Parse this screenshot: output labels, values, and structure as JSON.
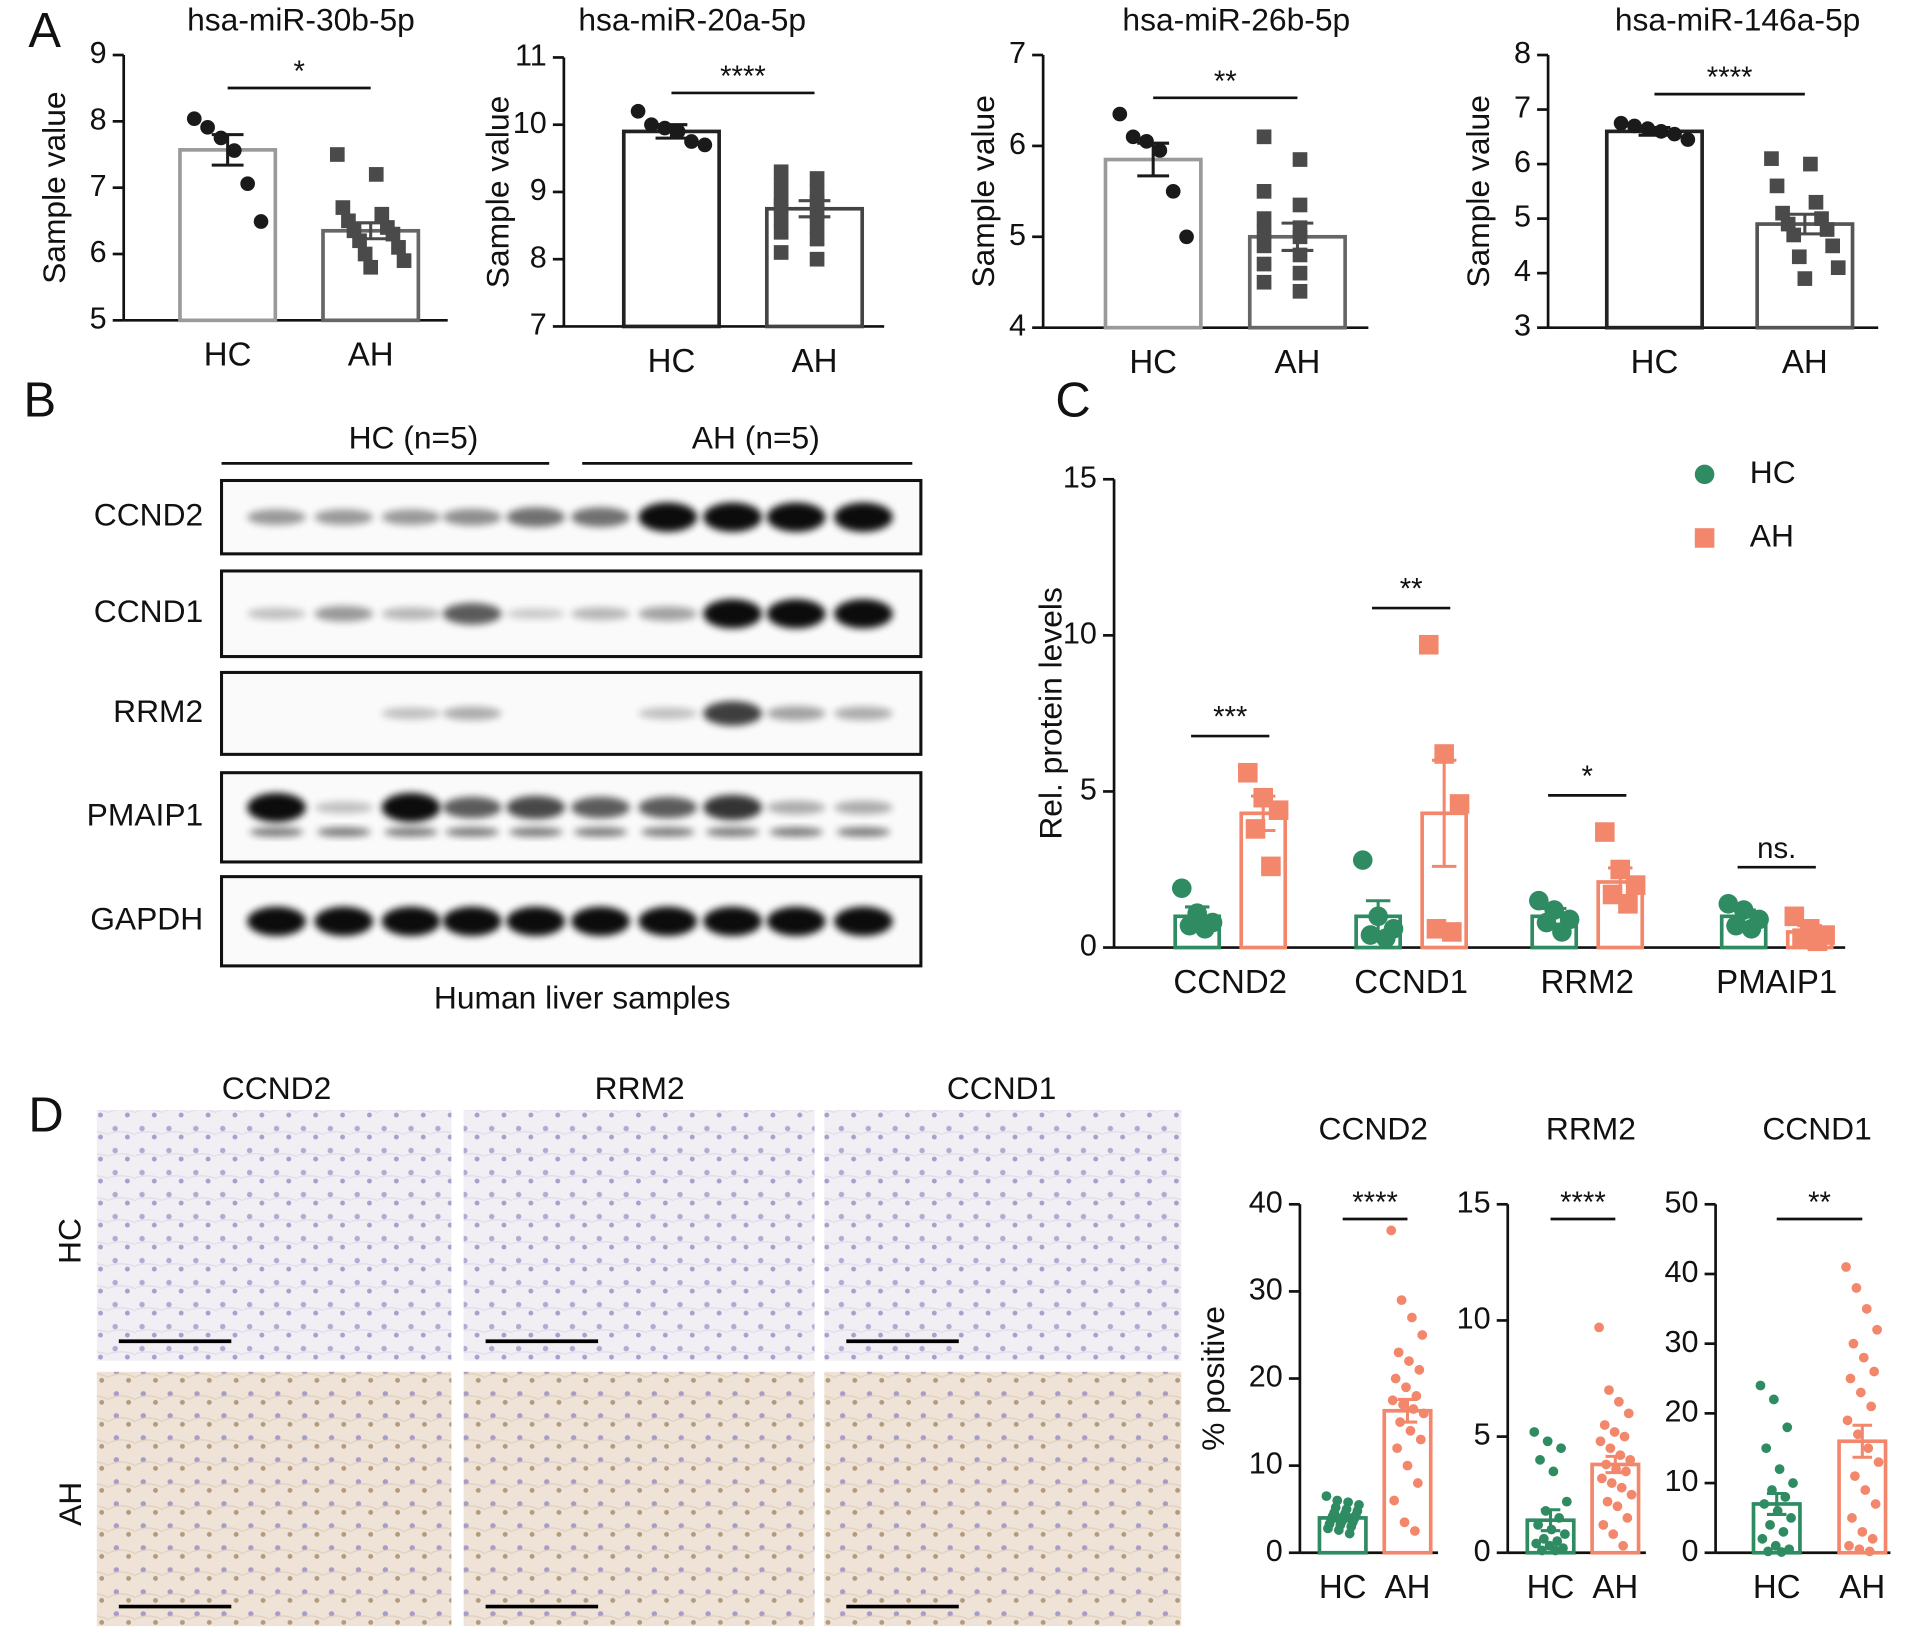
{
  "panels": [
    "A",
    "B",
    "C",
    "D"
  ],
  "blot": {
    "groups": [
      "HC (n=5)",
      "AH (n=5)"
    ],
    "proteins": [
      "CCND2",
      "CCND1",
      "RRM2",
      "PMAIP1",
      "GAPDH"
    ],
    "caption": "Human liver samples"
  },
  "histology": {
    "columns": [
      "CCND2",
      "RRM2",
      "CCND1"
    ],
    "rows": [
      "HC",
      "AH"
    ]
  },
  "chart_data": [
    {
      "type": "bar",
      "title": "hsa-miR-30b-5p",
      "ylabel": "Sample value",
      "categories": [
        "HC",
        "AH"
      ],
      "values": [
        7.57,
        6.35
      ],
      "errors": [
        0.23,
        0.12
      ],
      "points": [
        [
          8.04,
          7.91,
          7.75,
          7.56,
          7.06,
          6.49
        ],
        [
          7.5,
          7.2,
          6.7,
          6.6,
          6.5,
          6.4,
          6.35,
          6.3,
          6.2,
          6.1,
          6.0,
          5.9,
          5.8
        ]
      ],
      "colors": [
        "#9a9a9a",
        "#666666"
      ],
      "point_colors": [
        "#1a1a1a",
        "#4a4a4a"
      ],
      "markers": [
        "circle",
        "square"
      ],
      "significance": "*",
      "ylim": [
        5,
        9
      ],
      "yticks": [
        5,
        6,
        7,
        8,
        9
      ]
    },
    {
      "type": "bar",
      "title": "hsa-miR-20a-5p",
      "ylabel": "Sample value",
      "categories": [
        "HC",
        "AH"
      ],
      "values": [
        9.9,
        8.75
      ],
      "errors": [
        0.1,
        0.12
      ],
      "points": [
        [
          10.2,
          10.0,
          9.95,
          9.9,
          9.75,
          9.7
        ],
        [
          9.3,
          9.2,
          9.1,
          9.0,
          8.9,
          8.85,
          8.8,
          8.7,
          8.6,
          8.5,
          8.4,
          8.3,
          8.1,
          8.0
        ]
      ],
      "colors": [
        "#222222",
        "#444444"
      ],
      "point_colors": [
        "#1a1a1a",
        "#4a4a4a"
      ],
      "markers": [
        "circle",
        "square"
      ],
      "significance": "****",
      "ylim": [
        7,
        11
      ],
      "yticks": [
        7,
        8,
        9,
        10,
        11
      ]
    },
    {
      "type": "bar",
      "title": "hsa-miR-26b-5p",
      "ylabel": "Sample value",
      "categories": [
        "HC",
        "AH"
      ],
      "values": [
        5.85,
        5.0
      ],
      "errors": [
        0.18,
        0.15
      ],
      "points": [
        [
          6.35,
          6.1,
          6.05,
          5.95,
          5.5,
          5.0
        ],
        [
          6.1,
          5.85,
          5.5,
          5.35,
          5.2,
          5.1,
          5.05,
          5.0,
          4.9,
          4.8,
          4.7,
          4.6,
          4.5,
          4.4
        ]
      ],
      "colors": [
        "#9a9a9a",
        "#666666"
      ],
      "point_colors": [
        "#1a1a1a",
        "#4a4a4a"
      ],
      "markers": [
        "circle",
        "square"
      ],
      "significance": "**",
      "ylim": [
        4,
        7
      ],
      "yticks": [
        4,
        5,
        6,
        7
      ]
    },
    {
      "type": "bar",
      "title": "hsa-miR-146a-5p",
      "ylabel": "Sample value",
      "categories": [
        "HC",
        "AH"
      ],
      "values": [
        6.6,
        4.9
      ],
      "errors": [
        0.07,
        0.18
      ],
      "points": [
        [
          6.75,
          6.7,
          6.65,
          6.6,
          6.55,
          6.45
        ],
        [
          6.1,
          6.0,
          5.6,
          5.3,
          5.1,
          5.0,
          4.9,
          4.8,
          4.7,
          4.5,
          4.3,
          4.1,
          3.9
        ]
      ],
      "colors": [
        "#222222",
        "#555555"
      ],
      "point_colors": [
        "#1a1a1a",
        "#4a4a4a"
      ],
      "markers": [
        "circle",
        "square"
      ],
      "significance": "****",
      "ylim": [
        3,
        8
      ],
      "yticks": [
        3,
        4,
        5,
        6,
        7,
        8
      ]
    },
    {
      "type": "grouped_bar",
      "ylabel": "Rel. protein levels",
      "categories": [
        "CCND2",
        "CCND1",
        "RRM2",
        "PMAIP1"
      ],
      "series": [
        {
          "name": "HC",
          "color": "#2e8b62",
          "marker": "circle",
          "values": [
            1.0,
            1.0,
            1.0,
            1.0
          ],
          "errors": [
            0.3,
            0.5,
            0.25,
            0.2
          ],
          "points": [
            [
              1.9,
              1.1,
              0.8,
              0.7,
              0.6
            ],
            [
              2.8,
              1.0,
              0.6,
              0.4,
              0.3
            ],
            [
              1.5,
              1.2,
              0.9,
              0.8,
              0.5
            ],
            [
              1.4,
              1.2,
              0.9,
              0.7,
              0.6
            ]
          ]
        },
        {
          "name": "AH",
          "color": "#f2876b",
          "marker": "square",
          "values": [
            4.3,
            4.3,
            2.1,
            0.5
          ],
          "errors": [
            0.55,
            1.7,
            0.45,
            0.2
          ],
          "points": [
            [
              5.6,
              4.8,
              4.4,
              3.8,
              2.6
            ],
            [
              9.7,
              6.2,
              4.6,
              0.6,
              0.5
            ],
            [
              3.7,
              2.5,
              2.0,
              1.7,
              1.4
            ],
            [
              1.0,
              0.6,
              0.4,
              0.3,
              0.2
            ]
          ]
        }
      ],
      "significance": [
        "***",
        "**",
        "*",
        "ns."
      ],
      "ylim": [
        0,
        15
      ],
      "yticks": [
        0,
        5,
        10,
        15
      ],
      "legend": "top-right"
    },
    {
      "type": "bar",
      "title": "CCND2",
      "ylabel": "% positive",
      "categories": [
        "HC",
        "AH"
      ],
      "values": [
        4.0,
        16.3
      ],
      "errors": [
        0.35,
        1.3
      ],
      "points": [
        [
          6.5,
          6.0,
          5.8,
          5.5,
          5.2,
          5.0,
          4.8,
          4.6,
          4.5,
          4.3,
          4.2,
          4.0,
          3.9,
          3.8,
          3.6,
          3.5,
          3.3,
          3.2,
          3.0,
          2.8,
          2.6,
          2.2
        ],
        [
          37,
          29,
          27,
          25,
          23,
          22,
          21,
          20,
          19,
          18,
          17.5,
          17,
          16.5,
          16,
          15,
          14,
          13,
          12,
          10,
          8,
          6,
          3.5,
          2.5
        ]
      ],
      "colors": [
        "#2e8b62",
        "#f2876b"
      ],
      "markers": [
        "circle",
        "circle"
      ],
      "significance": "****",
      "ylim": [
        0,
        40
      ],
      "yticks": [
        0,
        10,
        20,
        30,
        40
      ]
    },
    {
      "type": "bar",
      "title": "RRM2",
      "categories": [
        "HC",
        "AH"
      ],
      "values": [
        1.4,
        3.8
      ],
      "errors": [
        0.45,
        0.35
      ],
      "points": [
        [
          5.2,
          4.8,
          4.5,
          4.0,
          3.5,
          2.2,
          1.8,
          1.5,
          1.2,
          1.0,
          0.8,
          0.6,
          0.5,
          0.4,
          0.3,
          0.2,
          0.1,
          0.1
        ],
        [
          9.7,
          7.0,
          6.5,
          6.0,
          5.5,
          5.2,
          5.0,
          4.8,
          4.5,
          4.2,
          4.0,
          3.8,
          3.6,
          3.5,
          3.2,
          3.0,
          2.8,
          2.5,
          2.2,
          2.0,
          1.5,
          1.2,
          0.8,
          0.3
        ]
      ],
      "colors": [
        "#2e8b62",
        "#f2876b"
      ],
      "markers": [
        "circle",
        "circle"
      ],
      "significance": "****",
      "ylim": [
        0,
        15
      ],
      "yticks": [
        0,
        5,
        10,
        15
      ]
    },
    {
      "type": "bar",
      "title": "CCND1",
      "categories": [
        "HC",
        "AH"
      ],
      "values": [
        7.0,
        16.0
      ],
      "errors": [
        1.5,
        2.3
      ],
      "points": [
        [
          24,
          22,
          18,
          15,
          12,
          10,
          9,
          8,
          7,
          6,
          5,
          4,
          3,
          2,
          1,
          0.5,
          0.2,
          0.1
        ],
        [
          41,
          38,
          35,
          32,
          30,
          28,
          26,
          25,
          23,
          21,
          19,
          17,
          15,
          13,
          11,
          9,
          7,
          5,
          3,
          2,
          1,
          0.5,
          0.2
        ]
      ],
      "colors": [
        "#2e8b62",
        "#f2876b"
      ],
      "markers": [
        "circle",
        "circle"
      ],
      "significance": "**",
      "ylim": [
        0,
        50
      ],
      "yticks": [
        0,
        10,
        20,
        30,
        40,
        50
      ]
    }
  ]
}
